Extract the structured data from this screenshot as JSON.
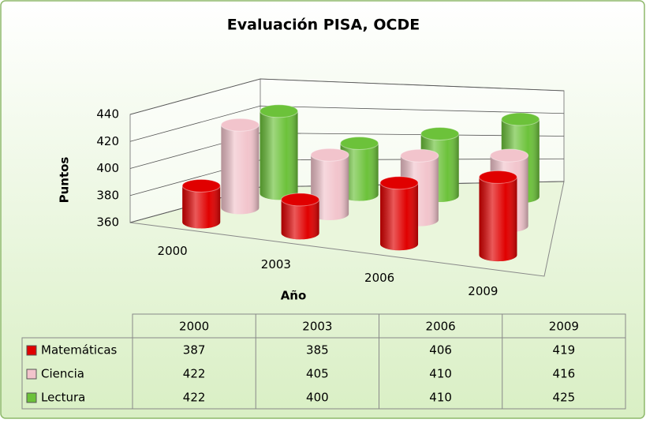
{
  "chart_data": {
    "type": "cylinder3d",
    "title": "Evaluación PISA, OCDE",
    "y_label": "Puntos",
    "x_label": "Año",
    "categories": [
      "2000",
      "2003",
      "2006",
      "2009"
    ],
    "series": [
      {
        "name": "Matemáticas",
        "color": "#e00000",
        "values": [
          387,
          385,
          406,
          419
        ]
      },
      {
        "name": "Ciencia",
        "color": "#f2c4cc",
        "values": [
          422,
          405,
          410,
          416
        ]
      },
      {
        "name": "Lectura",
        "color": "#6cc23a",
        "values": [
          422,
          400,
          410,
          425
        ]
      }
    ],
    "ylim": [
      360,
      440
    ],
    "yticks": [
      360,
      380,
      400,
      420,
      440
    ],
    "grid": true,
    "data_table": true
  }
}
